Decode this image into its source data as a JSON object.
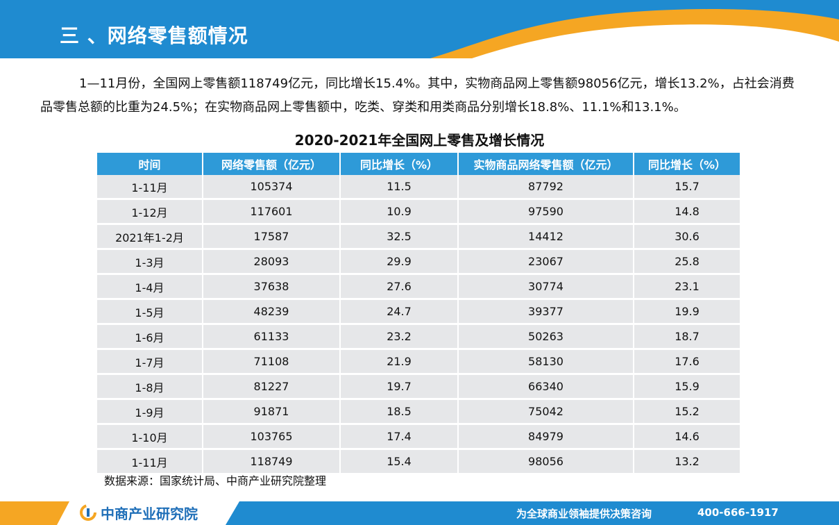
{
  "header": {
    "title": "三 、网络零售额情况"
  },
  "paragraph": "1—11月份，全国网上零售额118749亿元，同比增长15.4%。其中，实物商品网上零售额98056亿元，增长13.2%，占社会消费品零售总额的比重为24.5%；在实物商品网上零售额中，吃类、穿类和用类商品分别增长18.8%、11.1%和13.1%。",
  "table": {
    "title": "2020-2021年全国网上零售及增长情况",
    "columns": [
      "时间",
      "网络零售额（亿元）",
      "同比增长（%）",
      "实物商品网络零售额（亿元）",
      "同比增长（%）"
    ],
    "rows": [
      [
        "1-11月",
        "105374",
        "11.5",
        "87792",
        "15.7"
      ],
      [
        "1-12月",
        "117601",
        "10.9",
        "97590",
        "14.8"
      ],
      [
        "2021年1-2月",
        "17587",
        "32.5",
        "14412",
        "30.6"
      ],
      [
        "1-3月",
        "28093",
        "29.9",
        "23067",
        "25.8"
      ],
      [
        "1-4月",
        "37638",
        "27.6",
        "30774",
        "23.1"
      ],
      [
        "1-5月",
        "48239",
        "24.7",
        "39377",
        "19.9"
      ],
      [
        "1-6月",
        "61133",
        "23.2",
        "50263",
        "18.7"
      ],
      [
        "1-7月",
        "71108",
        "21.9",
        "58130",
        "17.6"
      ],
      [
        "1-8月",
        "81227",
        "19.7",
        "66340",
        "15.9"
      ],
      [
        "1-9月",
        "91871",
        "18.5",
        "75042",
        "15.2"
      ],
      [
        "1-10月",
        "103765",
        "17.4",
        "84979",
        "14.6"
      ],
      [
        "1-11月",
        "118749",
        "15.4",
        "98056",
        "13.2"
      ]
    ],
    "source": "数据来源：国家统计局、中商产业研究院整理"
  },
  "footer": {
    "logo_text": "中商产业研究院",
    "slogan": "为全球商业领袖提供决策咨询",
    "phone": "400-666-1917"
  },
  "colors": {
    "primary_blue": "#1f8bd0",
    "accent_orange": "#f5a623",
    "header_cell": "#2e9ad8",
    "body_cell": "#e6e7e9"
  },
  "icons": {
    "logo": "zhongshang-logo-icon"
  }
}
